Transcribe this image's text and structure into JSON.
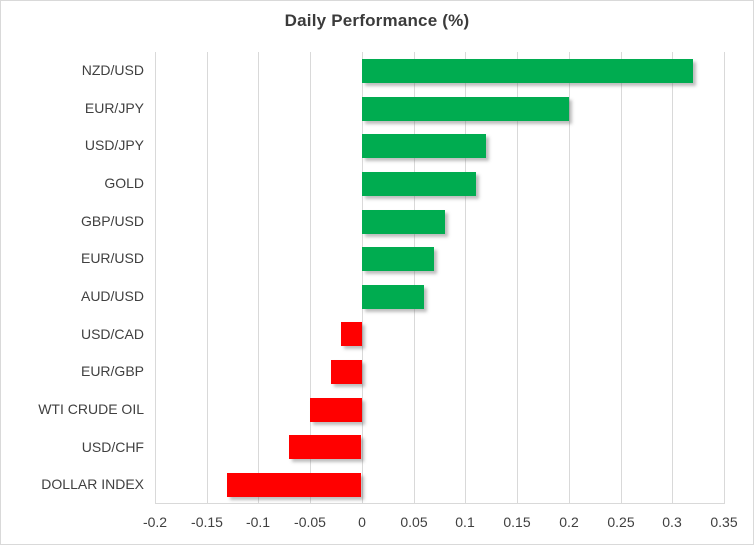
{
  "chart_data": {
    "type": "bar",
    "orientation": "horizontal",
    "title": "Daily Performance (%)",
    "categories": [
      "NZD/USD",
      "EUR/JPY",
      "USD/JPY",
      "GOLD",
      "GBP/USD",
      "EUR/USD",
      "AUD/USD",
      "USD/CAD",
      "EUR/GBP",
      "WTI CRUDE OIL",
      "USD/CHF",
      "DOLLAR INDEX"
    ],
    "values": [
      0.32,
      0.2,
      0.12,
      0.11,
      0.08,
      0.07,
      0.06,
      -0.02,
      -0.03,
      -0.05,
      -0.07,
      -0.13
    ],
    "xlabel": "",
    "ylabel": "",
    "xlim": [
      -0.2,
      0.35
    ],
    "tick_step": 0.05,
    "tick_labels": [
      "-0.2",
      "-0.15",
      "-0.1",
      "-0.05",
      "0",
      "0.05",
      "0.1",
      "0.15",
      "0.2",
      "0.25",
      "0.3",
      "0.35"
    ],
    "grid": true,
    "legend": false,
    "colors": {
      "positive_bar": "#00ac50",
      "negative_bar": "#ff0000",
      "gridline": "#d9d9d9",
      "axis_line": "#d9d9d9",
      "text": "#404040",
      "title": "#3b3b3b"
    }
  }
}
